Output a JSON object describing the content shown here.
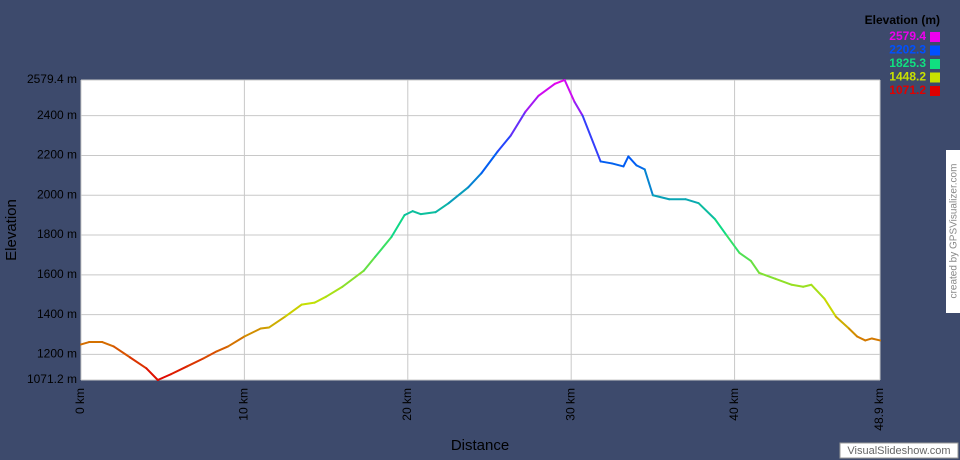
{
  "chart_data": {
    "type": "line",
    "y_label": "Elevation",
    "x_label": "Distance",
    "x": [
      0,
      0.5,
      1.3,
      2.0,
      3.0,
      4.0,
      4.7,
      5.5,
      6.5,
      7.5,
      8.3,
      9.0,
      10.0,
      11.0,
      11.5,
      12.5,
      13.5,
      14.3,
      15.0,
      16.0,
      17.3,
      18.0,
      19.0,
      19.8,
      20.3,
      20.8,
      21.7,
      22.5,
      23.7,
      24.5,
      25.5,
      26.3,
      27.2,
      28.0,
      29.0,
      29.6,
      30.2,
      30.7,
      31.8,
      32.5,
      33.2,
      33.5,
      34.0,
      34.5,
      35.0,
      36.0,
      37.0,
      37.8,
      38.8,
      39.5,
      40.3,
      41.0,
      41.5,
      42.5,
      43.5,
      44.2,
      44.7,
      45.5,
      46.2,
      47.0,
      47.5,
      48.0,
      48.4,
      48.9
    ],
    "series": [
      {
        "name": "Elevation",
        "values": [
          1250,
          1262,
          1262,
          1240,
          1185,
          1130,
          1071.2,
          1100,
          1140,
          1180,
          1215,
          1240,
          1290,
          1330,
          1335,
          1390,
          1450,
          1460,
          1490,
          1540,
          1620,
          1690,
          1790,
          1900,
          1920,
          1905,
          1915,
          1960,
          2040,
          2110,
          2220,
          2300,
          2420,
          2500,
          2560,
          2579.4,
          2470,
          2400,
          2170,
          2160,
          2145,
          2195,
          2150,
          2130,
          2000,
          1980,
          1980,
          1960,
          1880,
          1800,
          1710,
          1670,
          1610,
          1580,
          1550,
          1540,
          1550,
          1480,
          1390,
          1330,
          1290,
          1270,
          1280,
          1270
        ]
      }
    ],
    "xlim": [
      0,
      48.9
    ],
    "ylim": [
      1071.2,
      2579.4
    ],
    "xticks": [
      {
        "value": 0,
        "label": "0 km"
      },
      {
        "value": 10,
        "label": "10 km"
      },
      {
        "value": 20,
        "label": "20 km"
      },
      {
        "value": 30,
        "label": "30 km"
      },
      {
        "value": 40,
        "label": "40 km"
      },
      {
        "value": 48.9,
        "label": "48.9 km"
      }
    ],
    "yticks": [
      {
        "value": 1071.2,
        "label": "1071.2 m"
      },
      {
        "value": 1200,
        "label": "1200 m"
      },
      {
        "value": 1400,
        "label": "1400 m"
      },
      {
        "value": 1600,
        "label": "1600 m"
      },
      {
        "value": 1800,
        "label": "1800 m"
      },
      {
        "value": 2000,
        "label": "2000 m"
      },
      {
        "value": 2200,
        "label": "2200 m"
      },
      {
        "value": 2400,
        "label": "2400 m"
      },
      {
        "value": 2579.4,
        "label": "2579.4 m"
      }
    ],
    "grid": true,
    "legend": {
      "title": "Elevation (m)",
      "position": "top-right",
      "items": [
        {
          "value": 2579.4,
          "color": "#ee00ee"
        },
        {
          "value": 2202.3,
          "color": "#0050ff"
        },
        {
          "value": 1825.3,
          "color": "#10e080"
        },
        {
          "value": 1448.2,
          "color": "#c8e000"
        },
        {
          "value": 1071.2,
          "color": "#e00000"
        }
      ]
    },
    "credit": "created by GPSVisualizer.com",
    "watermark": "VisualSlideshow.com"
  }
}
